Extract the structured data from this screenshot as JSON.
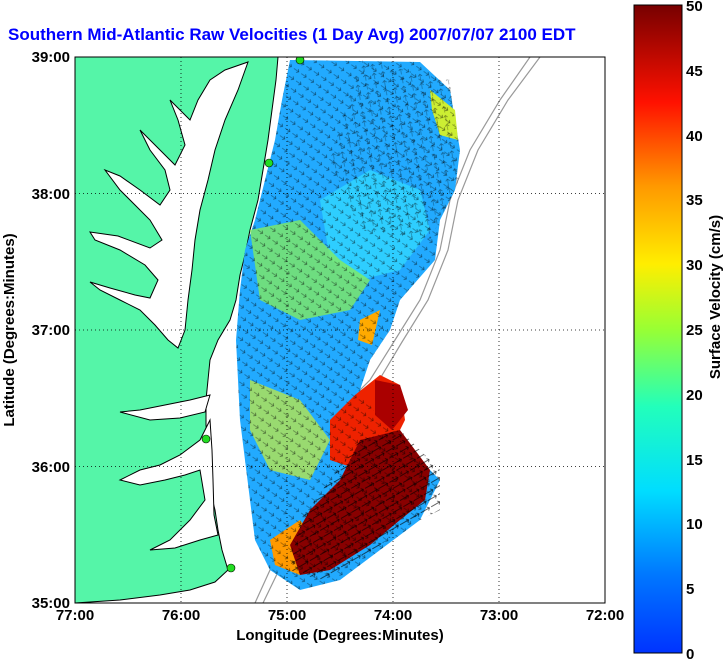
{
  "title": "Southern Mid-Atlantic Raw Velocities (1 Day Avg) 2007/07/07 2100 EDT",
  "xlabel": "Longitude (Degrees:Minutes)",
  "ylabel": "Latitude (Degrees:Minutes)",
  "colorbar_label": "Surface Velocity (cm/s)",
  "lon_ticks": [
    "77:00",
    "76:00",
    "75:00",
    "74:00",
    "73:00",
    "72:00"
  ],
  "lat_ticks": [
    "39:00",
    "38:00",
    "37:00",
    "36:00",
    "35:00"
  ],
  "colorbar_ticks": [
    "50",
    "45",
    "40",
    "35",
    "30",
    "25",
    "20",
    "15",
    "10",
    "5",
    "0"
  ],
  "colors": {
    "title": "#0000ff",
    "land": "#55f5a8",
    "ocean": "#ffffff",
    "coast": "#000000",
    "bathymetry": "#999999",
    "station": "#22dd22",
    "grid": "#000000"
  },
  "velocity_range": [
    0,
    50
  ]
}
